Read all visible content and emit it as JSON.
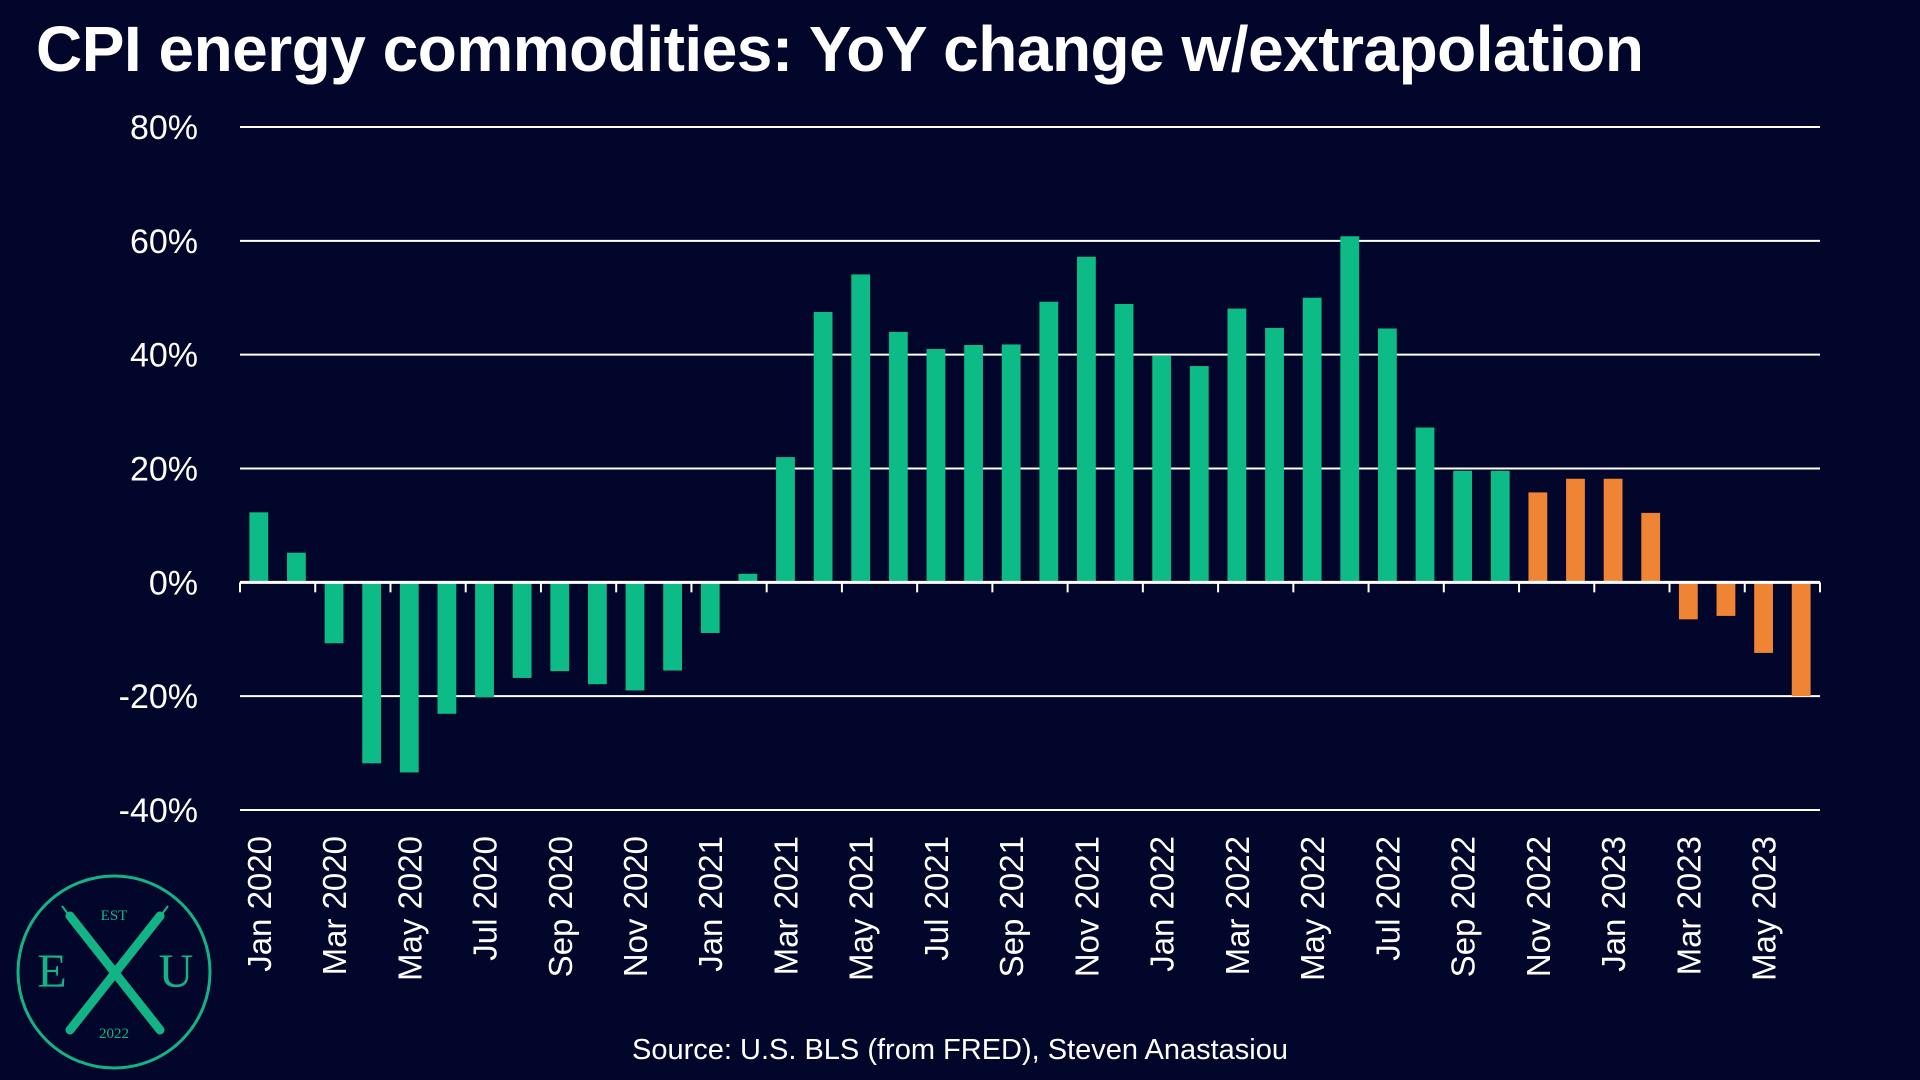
{
  "title": "CPI energy commodities: YoY change w/extrapolation",
  "source": "Source: U.S. BLS (from FRED), Steven Anastasiou",
  "logo": {
    "top_text": "EST",
    "left_letter": "E",
    "center_letter": "X",
    "right_letter": "U",
    "bottom_text": "2022"
  },
  "colors": {
    "background": "#03062b",
    "actual": "#0dbb87",
    "extrapolated": "#ef8435",
    "grid": "#ffffff",
    "logo": "#12b486"
  },
  "chart_data": {
    "type": "bar",
    "title": "CPI energy commodities: YoY change w/extrapolation",
    "xlabel": "",
    "ylabel": "",
    "ylim": [
      -40,
      80
    ],
    "y_ticks": [
      80,
      60,
      40,
      20,
      0,
      -20,
      -40
    ],
    "y_tick_labels": [
      "80%",
      "60%",
      "40%",
      "20%",
      "0%",
      "-20%",
      "-40%"
    ],
    "grid": true,
    "categories": [
      "Jan 2020",
      "Feb 2020",
      "Mar 2020",
      "Apr 2020",
      "May 2020",
      "Jun 2020",
      "Jul 2020",
      "Aug 2020",
      "Sep 2020",
      "Oct 2020",
      "Nov 2020",
      "Dec 2020",
      "Jan 2021",
      "Feb 2021",
      "Mar 2021",
      "Apr 2021",
      "May 2021",
      "Jun 2021",
      "Jul 2021",
      "Aug 2021",
      "Sep 2021",
      "Oct 2021",
      "Nov 2021",
      "Dec 2021",
      "Jan 2022",
      "Feb 2022",
      "Mar 2022",
      "Apr 2022",
      "May 2022",
      "Jun 2022",
      "Jul 2022",
      "Aug 2022",
      "Sep 2022",
      "Oct 2022",
      "Nov 2022",
      "Dec 2022",
      "Jan 2023",
      "Feb 2023",
      "Mar 2023",
      "Apr 2023",
      "May 2023",
      "Jun 2023"
    ],
    "x_tick_labels": [
      "Jan 2020",
      "Mar 2020",
      "May 2020",
      "Jul 2020",
      "Sep 2020",
      "Nov 2020",
      "Jan 2021",
      "Mar 2021",
      "May 2021",
      "Jul 2021",
      "Sep 2021",
      "Nov 2021",
      "Jan 2022",
      "Mar 2022",
      "May 2022",
      "Jul 2022",
      "Sep 2022",
      "Nov 2022",
      "Jan 2023",
      "Mar 2023",
      "May 2023"
    ],
    "values": [
      12.3,
      5.2,
      -10.7,
      -31.8,
      -33.4,
      -23.1,
      -20.2,
      -16.8,
      -15.6,
      -17.9,
      -19.0,
      -15.5,
      -8.9,
      1.5,
      22.0,
      47.5,
      54.1,
      44.0,
      41.0,
      41.7,
      41.8,
      49.3,
      57.2,
      48.9,
      39.8,
      38.0,
      48.1,
      44.7,
      50.0,
      60.8,
      44.6,
      27.2,
      19.6,
      19.6,
      15.8,
      18.2,
      18.2,
      12.2,
      -6.5,
      -5.9,
      -12.4,
      -20.0
    ],
    "extrapolated_from_index": 34
  }
}
